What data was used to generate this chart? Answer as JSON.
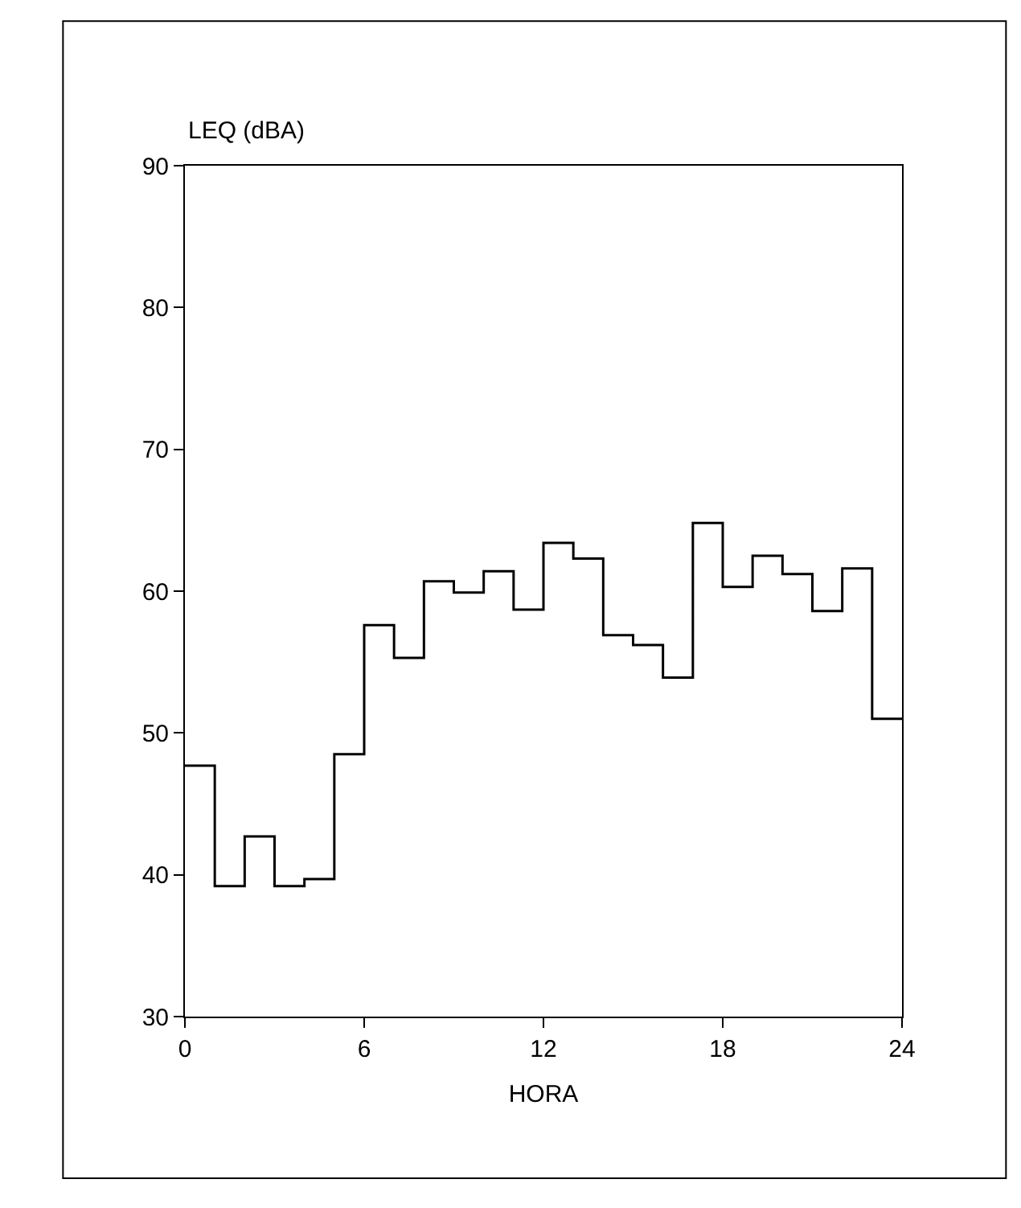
{
  "chart_data": {
    "type": "histogram",
    "xlabel": "HORA",
    "ylabel": "LEQ (dBA)",
    "bins": [
      0,
      1,
      2,
      3,
      4,
      5,
      6,
      7,
      8,
      9,
      10,
      11,
      12,
      13,
      14,
      15,
      16,
      17,
      18,
      19,
      20,
      21,
      22,
      23,
      24
    ],
    "values": [
      47.7,
      39.2,
      42.7,
      39.2,
      39.7,
      48.5,
      57.6,
      55.3,
      60.7,
      59.9,
      61.4,
      58.7,
      63.4,
      62.3,
      56.9,
      56.2,
      53.9,
      64.8,
      60.3,
      62.5,
      61.2,
      58.6,
      61.6,
      51.0
    ],
    "color": "#000000",
    "xlim": [
      0,
      24
    ],
    "xticks": [
      0,
      6,
      12,
      18,
      24
    ],
    "ylim": [
      30,
      90
    ],
    "yticks": [
      30,
      40,
      50,
      60,
      70,
      80,
      90
    ]
  }
}
